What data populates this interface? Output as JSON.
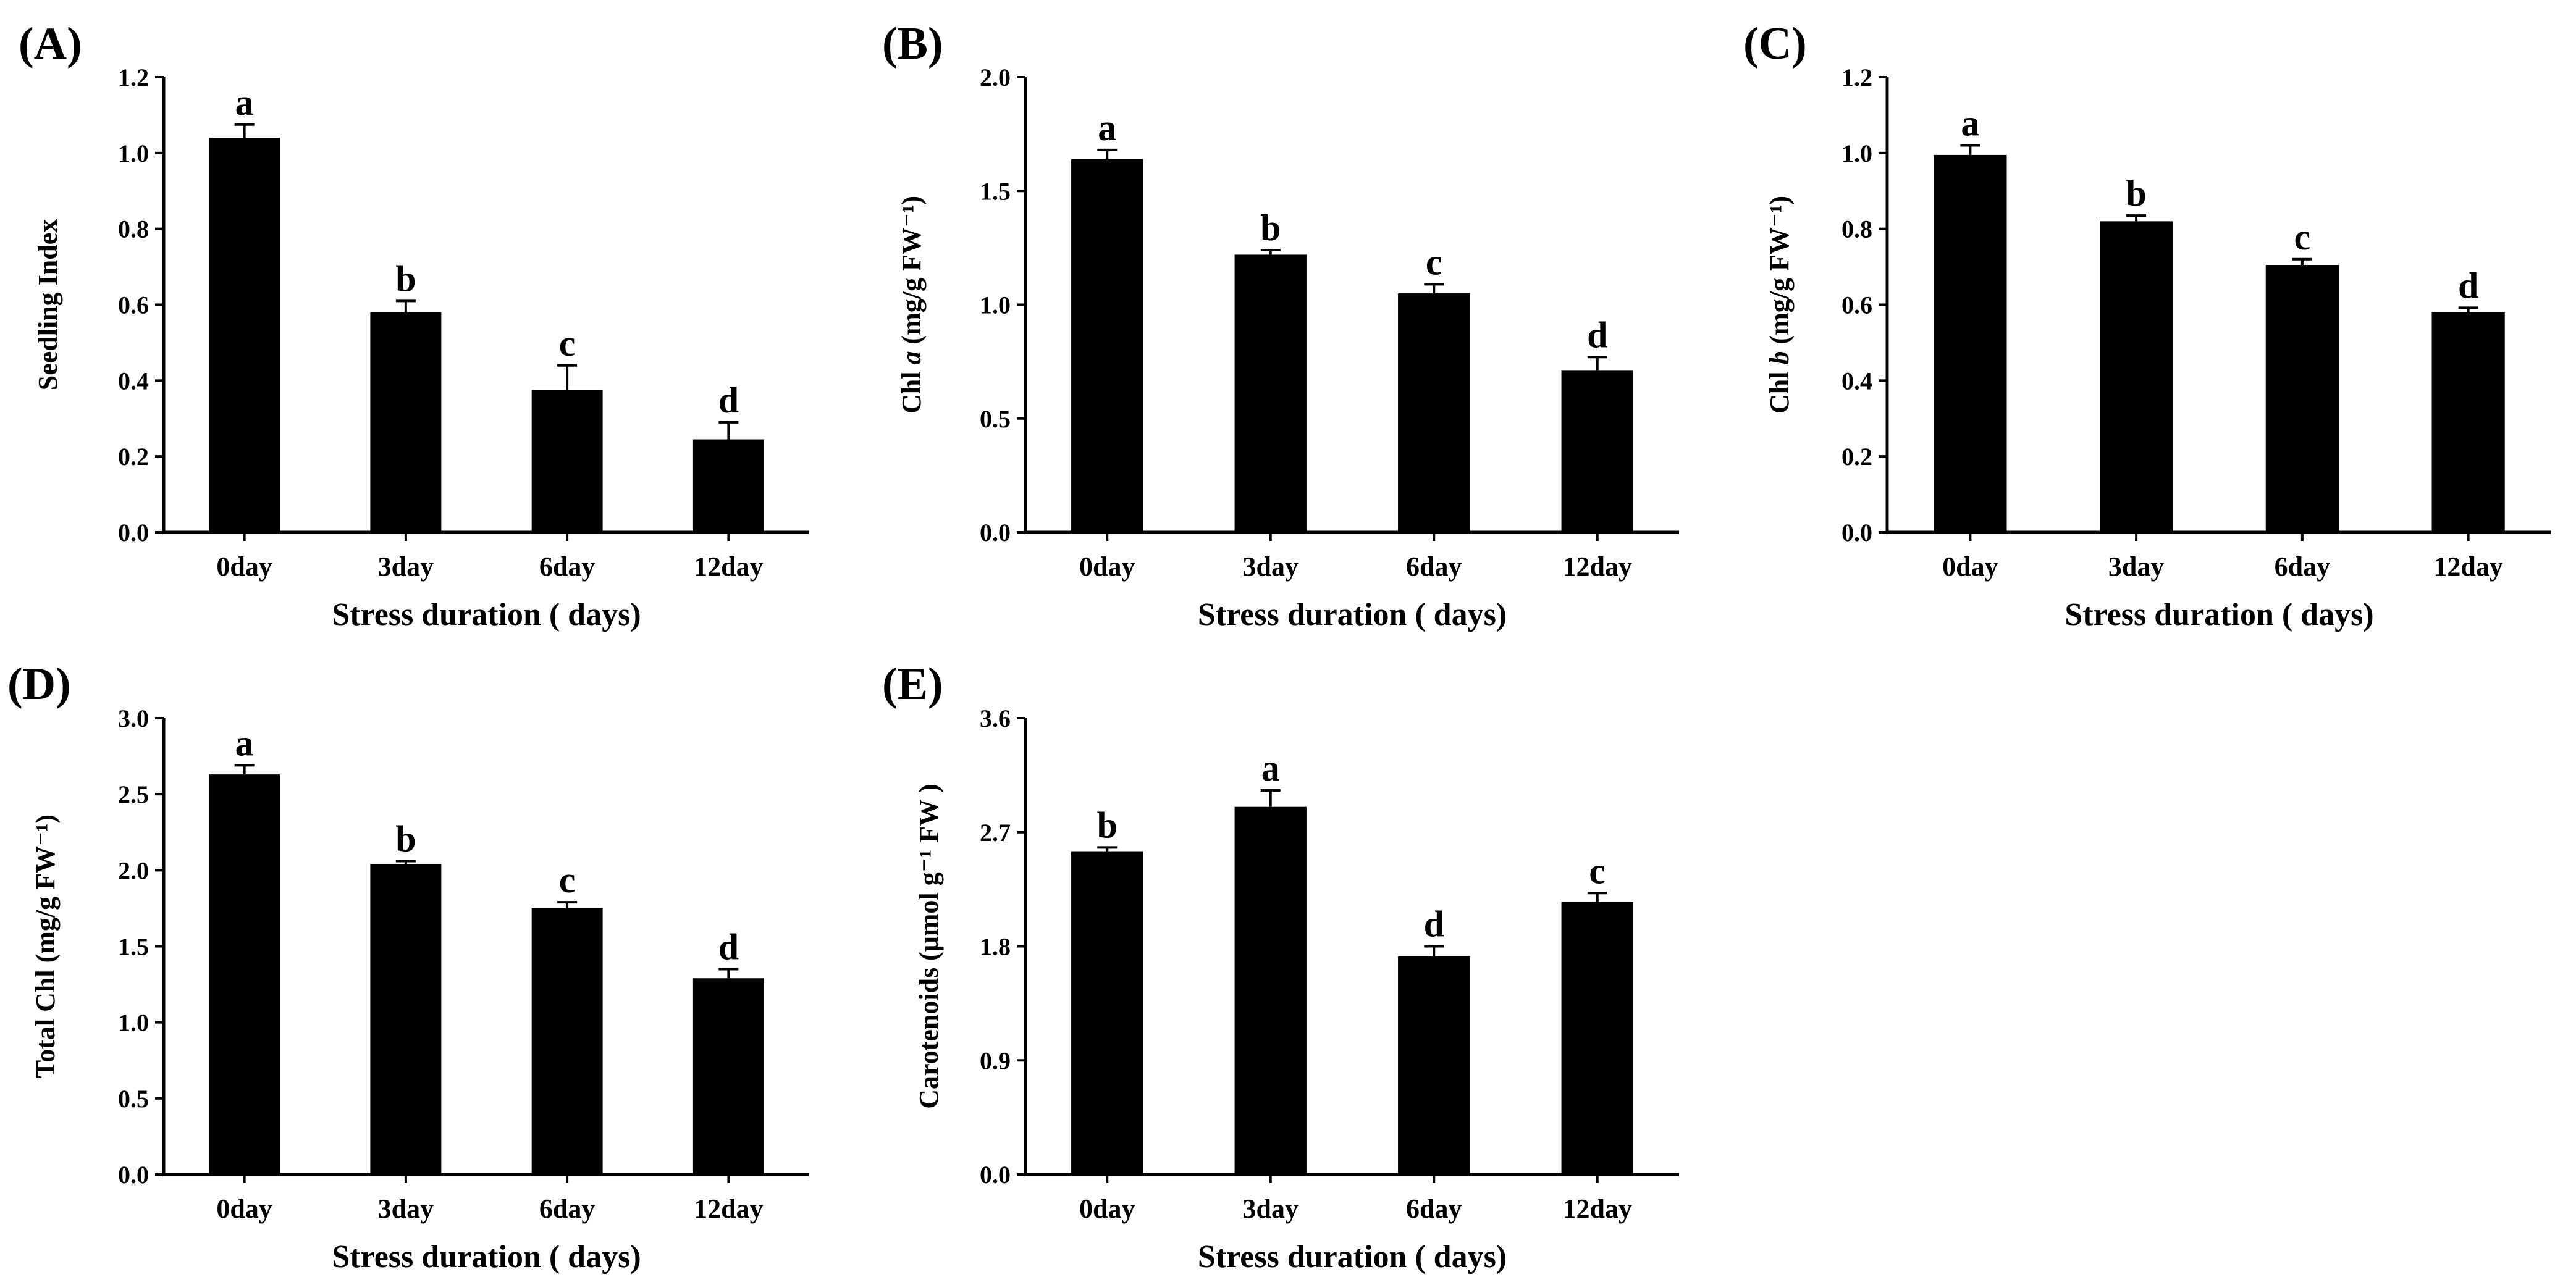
{
  "colors": {
    "bar": "#000000",
    "axis": "#000000",
    "background": "#ffffff"
  },
  "chart_data": [
    {
      "panel": "(A)",
      "type": "bar",
      "categories": [
        "0day",
        "3day",
        "6day",
        "12day"
      ],
      "values": [
        1.04,
        0.58,
        0.375,
        0.245
      ],
      "errors": [
        0.035,
        0.03,
        0.065,
        0.045
      ],
      "significance": [
        "a",
        "b",
        "c",
        "d"
      ],
      "xlabel": "Stress duration ( days)",
      "ylabel": "Seedling Index",
      "ylim": [
        0,
        1.2
      ],
      "yticks": [
        "0.0",
        "0.2",
        "0.4",
        "0.6",
        "0.8",
        "1.0",
        "1.2"
      ]
    },
    {
      "panel": "(B)",
      "type": "bar",
      "categories": [
        "0day",
        "3day",
        "6day",
        "12day"
      ],
      "values": [
        1.64,
        1.22,
        1.05,
        0.71
      ],
      "errors": [
        0.04,
        0.02,
        0.04,
        0.06
      ],
      "significance": [
        "a",
        "b",
        "c",
        "d"
      ],
      "xlabel": "Stress duration ( days)",
      "ylabel": "Chl a (mg/g FW⁻¹)",
      "ylabel_parts": [
        "Chl ",
        "a",
        " (mg/g FW⁻¹)"
      ],
      "ylim": [
        0,
        2.0
      ],
      "yticks": [
        "0.0",
        "0.5",
        "1.0",
        "1.5",
        "2.0"
      ]
    },
    {
      "panel": "(C)",
      "type": "bar",
      "categories": [
        "0day",
        "3day",
        "6day",
        "12day"
      ],
      "values": [
        0.995,
        0.82,
        0.705,
        0.58
      ],
      "errors": [
        0.025,
        0.015,
        0.015,
        0.012
      ],
      "significance": [
        "a",
        "b",
        "c",
        "d"
      ],
      "xlabel": "Stress duration ( days)",
      "ylabel": "Chl b (mg/g FW⁻¹)",
      "ylabel_parts": [
        "Chl ",
        "b",
        " (mg/g FW⁻¹)"
      ],
      "ylim": [
        0,
        1.2
      ],
      "yticks": [
        "0.0",
        "0.2",
        "0.4",
        "0.6",
        "0.8",
        "1.0",
        "1.2"
      ]
    },
    {
      "panel": "(D)",
      "type": "bar",
      "categories": [
        "0day",
        "3day",
        "6day",
        "12day"
      ],
      "values": [
        2.63,
        2.04,
        1.75,
        1.29
      ],
      "errors": [
        0.06,
        0.02,
        0.04,
        0.06
      ],
      "significance": [
        "a",
        "b",
        "c",
        "d"
      ],
      "xlabel": "Stress duration ( days)",
      "ylabel": "Total Chl  (mg/g FW⁻¹)",
      "ylim": [
        0,
        3.0
      ],
      "yticks": [
        "0.0",
        "0.5",
        "1.0",
        "1.5",
        "2.0",
        "2.5",
        "3.0"
      ]
    },
    {
      "panel": "(E)",
      "type": "bar",
      "categories": [
        "0day",
        "3day",
        "6day",
        "12day"
      ],
      "values": [
        2.55,
        2.9,
        1.72,
        2.15
      ],
      "errors": [
        0.03,
        0.13,
        0.08,
        0.07
      ],
      "significance": [
        "b",
        "a",
        "d",
        "c"
      ],
      "xlabel": "Stress duration ( days)",
      "ylabel": "Carotenoids (μmol g⁻¹ FW )",
      "ylim": [
        0,
        3.6
      ],
      "yticks": [
        "0.0",
        "0.9",
        "1.8",
        "2.7",
        "3.6"
      ]
    }
  ]
}
